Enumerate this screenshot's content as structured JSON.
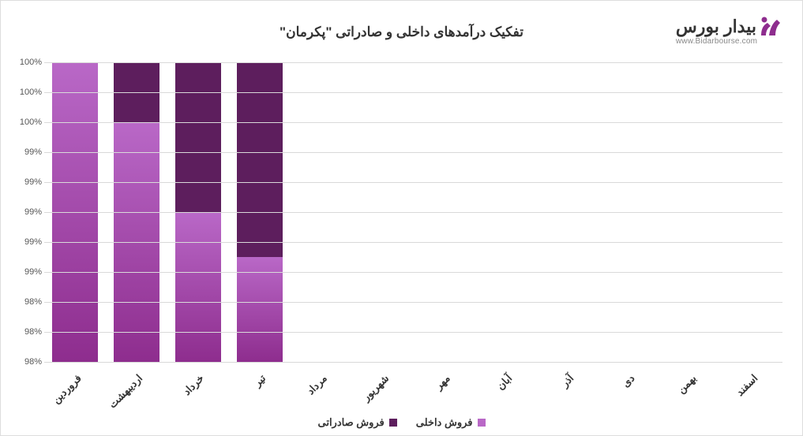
{
  "logo": {
    "text": "بیدار بورس",
    "url": "www.Bidarbourse.com",
    "colors": {
      "primary": "#8e2d8e",
      "text": "#333333",
      "url": "#888888"
    }
  },
  "chart": {
    "type": "stacked-bar",
    "title": "تفکیک درآمدهای داخلی و صادراتی \"پکرمان\"",
    "title_fontsize": 17,
    "categories": [
      "فروردین",
      "اردیبهشت",
      "خرداد",
      "تیر",
      "مرداد",
      "شهریور",
      "مهر",
      "آبان",
      "آذر",
      "دی",
      "بهمن",
      "اسفند"
    ],
    "series": [
      {
        "name": "فروش داخلی",
        "color_top": "#b968c7",
        "color_bottom": "#8e2d8e",
        "values": [
          100,
          99.6,
          99.0,
          98.7,
          null,
          null,
          null,
          null,
          null,
          null,
          null,
          null
        ]
      },
      {
        "name": "فروش صادراتی",
        "color": "#5d1e5d",
        "values": [
          0,
          0.4,
          1.0,
          1.3,
          null,
          null,
          null,
          null,
          null,
          null,
          null,
          null
        ]
      }
    ],
    "y_axis": {
      "min": 98,
      "max": 100,
      "ticks": [
        98,
        98,
        98,
        99,
        99,
        99,
        99,
        99,
        100,
        100,
        100
      ],
      "suffix": "%",
      "label_fontsize": 11
    },
    "x_label_fontsize": 13,
    "bar_width_ratio": 0.74,
    "background_color": "#ffffff",
    "grid_color": "#d9d9d9",
    "legend": {
      "items": [
        {
          "label": "فروش داخلی",
          "color": "#b968c7"
        },
        {
          "label": "فروش صادراتی",
          "color": "#5d1e5d"
        }
      ]
    }
  }
}
